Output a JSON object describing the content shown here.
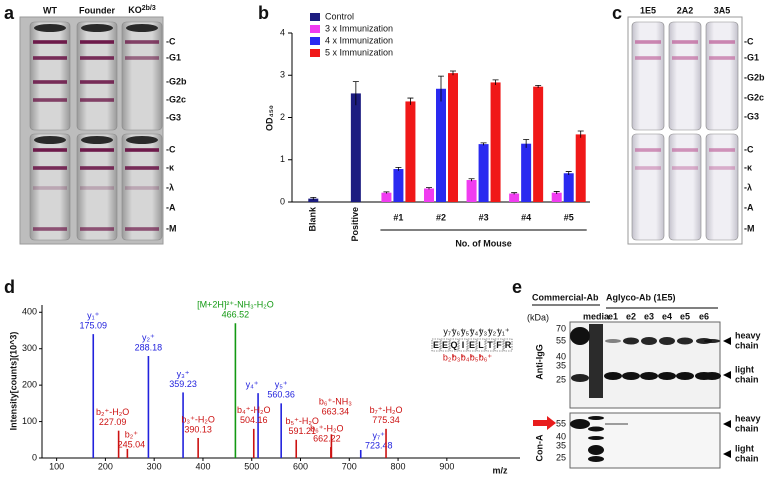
{
  "panels": {
    "a": {
      "letter": "a",
      "columns": [
        "WT",
        "Founder",
        {
          "base": "KO",
          "sup": "2b/3"
        }
      ],
      "top_labels": [
        "-C",
        "-G1",
        "-G2b",
        "-G2c",
        "-G3"
      ],
      "bottom_labels": [
        "-C",
        "-κ",
        "-λ",
        "-A",
        "-M"
      ]
    },
    "b": {
      "letter": "b"
    },
    "c": {
      "letter": "c",
      "columns": [
        "1E5",
        "2A2",
        "3A5"
      ],
      "top_labels": [
        "-C",
        "-G1",
        "-G2b",
        "-G2c",
        "-G3"
      ],
      "bottom_labels": [
        "-C",
        "-κ",
        "-λ",
        "-A",
        "-M"
      ]
    },
    "d": {
      "letter": "d"
    },
    "e": {
      "letter": "e",
      "group_titles": [
        "Commercial-Ab",
        "Aglyco-Ab (1E5)"
      ],
      "lanes": [
        "media",
        "e1",
        "e2",
        "e3",
        "e4",
        "e5",
        "e6"
      ],
      "unit": "(kDa)",
      "top_markers": [
        70,
        55,
        40,
        35,
        25
      ],
      "bottom_markers": [
        55,
        40,
        35,
        25
      ],
      "top_side": "Anti-IgG",
      "bottom_side": "Con-A",
      "top_bands": [
        [
          "heavy",
          "chain"
        ],
        [
          "light",
          "chain"
        ]
      ],
      "bottom_bands": [
        [
          "heavy",
          "chain"
        ],
        [
          "light",
          "chain"
        ]
      ]
    }
  },
  "chart_data": [
    {
      "type": "bar",
      "ylabel": "OD₄₅₀",
      "xlabel": "No. of Mouse",
      "categories": [
        "Blank",
        "Positive",
        "#1",
        "#2",
        "#3",
        "#4",
        "#5"
      ],
      "series": [
        {
          "name": "Control",
          "color": "#1c1c80",
          "values": [
            0.08,
            2.57,
            null,
            null,
            null,
            null,
            null
          ],
          "errors": [
            0.03,
            0.28,
            null,
            null,
            null,
            null,
            null
          ]
        },
        {
          "name": "3 x Immunization",
          "color": "#f03cf0",
          "values": [
            null,
            null,
            0.22,
            0.32,
            0.52,
            0.2,
            0.22
          ],
          "errors": [
            null,
            null,
            0.02,
            0.02,
            0.03,
            0.02,
            0.03
          ]
        },
        {
          "name": "4 x Immunization",
          "color": "#2a2af0",
          "values": [
            null,
            null,
            0.78,
            2.68,
            1.37,
            1.38,
            0.68
          ],
          "errors": [
            null,
            null,
            0.04,
            0.3,
            0.03,
            0.1,
            0.04
          ]
        },
        {
          "name": "5 x Immunization",
          "color": "#f01818",
          "values": [
            null,
            null,
            2.38,
            3.05,
            2.83,
            2.73,
            1.6
          ],
          "errors": [
            null,
            null,
            0.08,
            0.05,
            0.06,
            0.03,
            0.08
          ]
        }
      ],
      "ylim": [
        0,
        4
      ],
      "yticks": [
        0,
        1,
        2,
        3,
        4
      ],
      "legend": "top-left"
    },
    {
      "type": "spectrum",
      "ylabel": "Intensity[counts](10^3)",
      "xlabel": "m/z",
      "x": [
        175.09,
        227.09,
        245.04,
        288.18,
        359.23,
        390.13,
        513,
        466.52,
        560.36,
        504.16,
        591.21,
        663.34,
        662.22,
        723.48,
        775.34
      ],
      "values": [
        340,
        75,
        25,
        280,
        180,
        55,
        178,
        370,
        150,
        80,
        50,
        65,
        30,
        22,
        80
      ],
      "labels": [
        "y₁⁺",
        "b₂⁺-H₂O",
        "b₂⁺",
        "y₂⁺",
        "y₃⁺",
        "b₃⁺-H₂O",
        "y₄⁺",
        "[M+2H]²⁺-NH₃-H₂O",
        "y₅⁺",
        "b₄⁺-H₂O",
        "b₅⁺-H₂O",
        "b₆⁺-NH₃",
        "b₆⁺-H₂O",
        "y₇⁺",
        "b₇⁺-H₂O"
      ],
      "colors": [
        "#2222dd",
        "#cc1111",
        "#cc1111",
        "#2222dd",
        "#2222dd",
        "#cc1111",
        "#2222dd",
        "#129912",
        "#2222dd",
        "#cc1111",
        "#cc1111",
        "#cc1111",
        "#cc1111",
        "#2222dd",
        "#cc1111"
      ],
      "sequence": [
        "E",
        "E",
        "Q",
        "I",
        "E",
        "L",
        "T",
        "F",
        "R"
      ],
      "y_ions": [
        "y₇⁺",
        "y₆⁺",
        "y₅⁺",
        "y₄⁺",
        "y₃⁺",
        "y₂⁺",
        "y₁⁺"
      ],
      "b_ions": [
        "b₂⁺",
        "b₃⁺",
        "b₄⁺",
        "b₅⁺",
        "b₆⁺"
      ],
      "xlim": [
        70,
        1050
      ],
      "xticks": [
        100,
        200,
        300,
        400,
        500,
        600,
        700,
        800,
        900
      ],
      "ylim": [
        0,
        420
      ],
      "yticks": [
        0,
        100,
        200,
        300,
        400
      ]
    }
  ]
}
